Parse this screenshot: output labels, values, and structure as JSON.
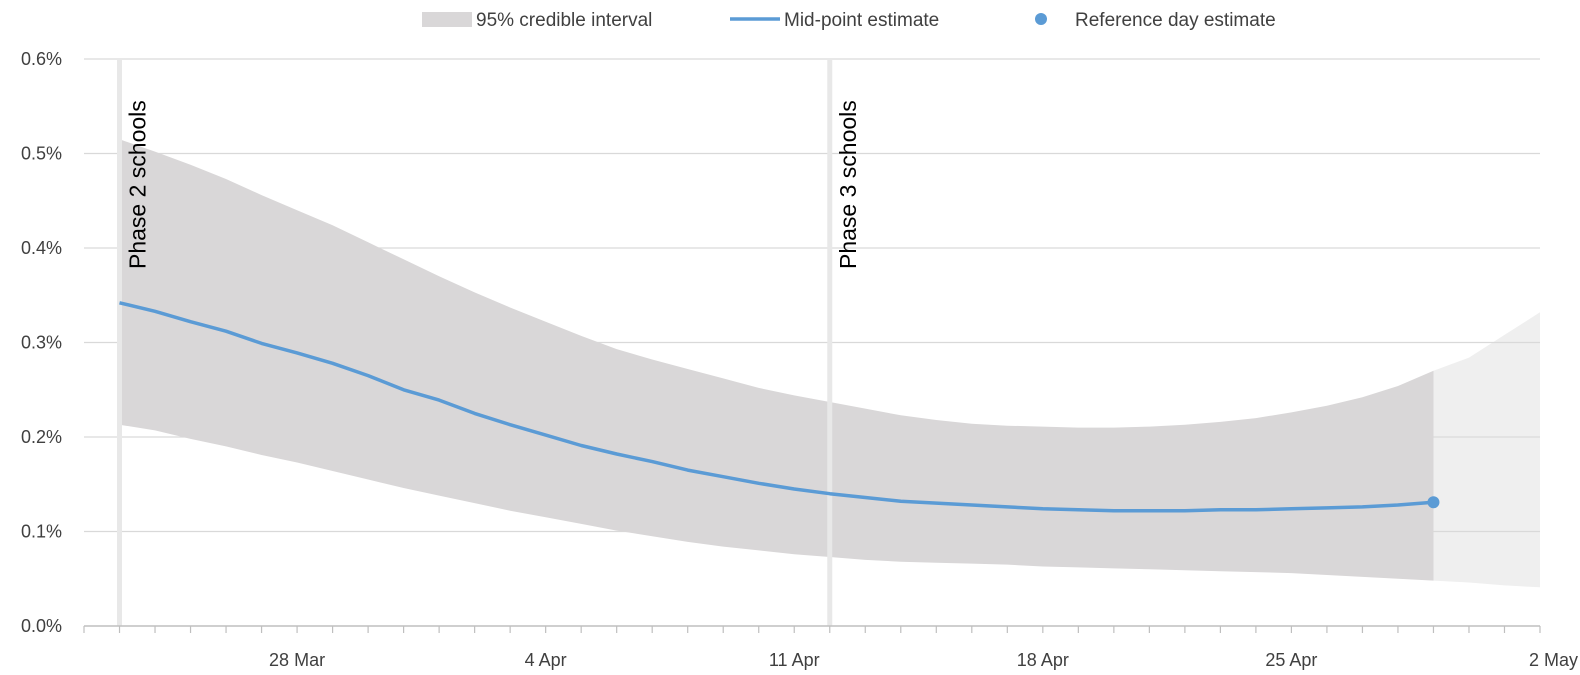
{
  "chart_data": {
    "type": "line",
    "x_axis": {
      "type": "date",
      "min": "2020-03-22",
      "max": "2020-05-02",
      "tick_labels": [
        {
          "date": "2020-03-28",
          "label": "28 Mar"
        },
        {
          "date": "2020-04-04",
          "label": "4 Apr"
        },
        {
          "date": "2020-04-11",
          "label": "11 Apr"
        },
        {
          "date": "2020-04-18",
          "label": "18 Apr"
        },
        {
          "date": "2020-04-25",
          "label": "25 Apr"
        },
        {
          "date": "2020-05-02",
          "label": "2 May"
        }
      ]
    },
    "y_axis": {
      "min": 0,
      "max": 0.6,
      "unit": "%",
      "tick_labels": [
        {
          "value": 0.0,
          "label": "0.0%"
        },
        {
          "value": 0.1,
          "label": "0.1%"
        },
        {
          "value": 0.2,
          "label": "0.2%"
        },
        {
          "value": 0.3,
          "label": "0.3%"
        },
        {
          "value": 0.4,
          "label": "0.4%"
        },
        {
          "value": 0.5,
          "label": "0.5%"
        },
        {
          "value": 0.6,
          "label": "0.6%"
        }
      ]
    },
    "grid": "horizontal",
    "legend": {
      "position": "top",
      "items": [
        {
          "label": "95% credible interval",
          "kind": "band"
        },
        {
          "label": "Mid-point estimate",
          "kind": "line"
        },
        {
          "label": "Reference day estimate",
          "kind": "point"
        }
      ]
    },
    "colors": {
      "band": "#d9d7d8",
      "band_projection": "#efefef",
      "line": "#5b9bd5",
      "grid": "#d9d9d9",
      "marker_line": "#e8e8e8",
      "axis": "#bfbfbf"
    },
    "annotations": [
      {
        "date": "2020-03-23",
        "label": "Phase 2 schools"
      },
      {
        "date": "2020-04-12",
        "label": "Phase 3 schools"
      }
    ],
    "series": [
      {
        "name": "Mid-point estimate",
        "points": [
          [
            "2020-03-23",
            0.342
          ],
          [
            "2020-03-24",
            0.333
          ],
          [
            "2020-03-25",
            0.322
          ],
          [
            "2020-03-26",
            0.312
          ],
          [
            "2020-03-27",
            0.299
          ],
          [
            "2020-03-28",
            0.289
          ],
          [
            "2020-03-29",
            0.278
          ],
          [
            "2020-03-30",
            0.265
          ],
          [
            "2020-03-31",
            0.25
          ],
          [
            "2020-04-01",
            0.239
          ],
          [
            "2020-04-02",
            0.225
          ],
          [
            "2020-04-03",
            0.213
          ],
          [
            "2020-04-04",
            0.202
          ],
          [
            "2020-04-05",
            0.191
          ],
          [
            "2020-04-06",
            0.182
          ],
          [
            "2020-04-07",
            0.174
          ],
          [
            "2020-04-08",
            0.165
          ],
          [
            "2020-04-09",
            0.158
          ],
          [
            "2020-04-10",
            0.151
          ],
          [
            "2020-04-11",
            0.145
          ],
          [
            "2020-04-12",
            0.14
          ],
          [
            "2020-04-13",
            0.136
          ],
          [
            "2020-04-14",
            0.132
          ],
          [
            "2020-04-15",
            0.13
          ],
          [
            "2020-04-16",
            0.128
          ],
          [
            "2020-04-17",
            0.126
          ],
          [
            "2020-04-18",
            0.124
          ],
          [
            "2020-04-19",
            0.123
          ],
          [
            "2020-04-20",
            0.122
          ],
          [
            "2020-04-21",
            0.122
          ],
          [
            "2020-04-22",
            0.122
          ],
          [
            "2020-04-23",
            0.123
          ],
          [
            "2020-04-24",
            0.123
          ],
          [
            "2020-04-25",
            0.124
          ],
          [
            "2020-04-26",
            0.125
          ],
          [
            "2020-04-27",
            0.126
          ],
          [
            "2020-04-28",
            0.128
          ],
          [
            "2020-04-29",
            0.131
          ]
        ]
      },
      {
        "name": "95% credible interval",
        "upper": [
          [
            "2020-03-23",
            0.515
          ],
          [
            "2020-03-24",
            0.502
          ],
          [
            "2020-03-25",
            0.488
          ],
          [
            "2020-03-26",
            0.473
          ],
          [
            "2020-03-27",
            0.456
          ],
          [
            "2020-03-28",
            0.44
          ],
          [
            "2020-03-29",
            0.424
          ],
          [
            "2020-03-30",
            0.406
          ],
          [
            "2020-03-31",
            0.388
          ],
          [
            "2020-04-01",
            0.37
          ],
          [
            "2020-04-02",
            0.353
          ],
          [
            "2020-04-03",
            0.337
          ],
          [
            "2020-04-04",
            0.322
          ],
          [
            "2020-04-05",
            0.307
          ],
          [
            "2020-04-06",
            0.293
          ],
          [
            "2020-04-07",
            0.282
          ],
          [
            "2020-04-08",
            0.272
          ],
          [
            "2020-04-09",
            0.262
          ],
          [
            "2020-04-10",
            0.252
          ],
          [
            "2020-04-11",
            0.244
          ],
          [
            "2020-04-12",
            0.237
          ],
          [
            "2020-04-13",
            0.23
          ],
          [
            "2020-04-14",
            0.223
          ],
          [
            "2020-04-15",
            0.218
          ],
          [
            "2020-04-16",
            0.214
          ],
          [
            "2020-04-17",
            0.212
          ],
          [
            "2020-04-18",
            0.211
          ],
          [
            "2020-04-19",
            0.21
          ],
          [
            "2020-04-20",
            0.21
          ],
          [
            "2020-04-21",
            0.211
          ],
          [
            "2020-04-22",
            0.213
          ],
          [
            "2020-04-23",
            0.216
          ],
          [
            "2020-04-24",
            0.22
          ],
          [
            "2020-04-25",
            0.226
          ],
          [
            "2020-04-26",
            0.233
          ],
          [
            "2020-04-27",
            0.242
          ],
          [
            "2020-04-28",
            0.254
          ],
          [
            "2020-04-29",
            0.27
          ]
        ],
        "lower": [
          [
            "2020-03-23",
            0.213
          ],
          [
            "2020-03-24",
            0.207
          ],
          [
            "2020-03-25",
            0.198
          ],
          [
            "2020-03-26",
            0.19
          ],
          [
            "2020-03-27",
            0.181
          ],
          [
            "2020-03-28",
            0.173
          ],
          [
            "2020-03-29",
            0.164
          ],
          [
            "2020-03-30",
            0.155
          ],
          [
            "2020-03-31",
            0.146
          ],
          [
            "2020-04-01",
            0.138
          ],
          [
            "2020-04-02",
            0.13
          ],
          [
            "2020-04-03",
            0.122
          ],
          [
            "2020-04-04",
            0.115
          ],
          [
            "2020-04-05",
            0.108
          ],
          [
            "2020-04-06",
            0.101
          ],
          [
            "2020-04-07",
            0.095
          ],
          [
            "2020-04-08",
            0.089
          ],
          [
            "2020-04-09",
            0.084
          ],
          [
            "2020-04-10",
            0.08
          ],
          [
            "2020-04-11",
            0.076
          ],
          [
            "2020-04-12",
            0.073
          ],
          [
            "2020-04-13",
            0.07
          ],
          [
            "2020-04-14",
            0.068
          ],
          [
            "2020-04-15",
            0.067
          ],
          [
            "2020-04-16",
            0.066
          ],
          [
            "2020-04-17",
            0.065
          ],
          [
            "2020-04-18",
            0.063
          ],
          [
            "2020-04-19",
            0.062
          ],
          [
            "2020-04-20",
            0.061
          ],
          [
            "2020-04-21",
            0.06
          ],
          [
            "2020-04-22",
            0.059
          ],
          [
            "2020-04-23",
            0.058
          ],
          [
            "2020-04-24",
            0.057
          ],
          [
            "2020-04-25",
            0.056
          ],
          [
            "2020-04-26",
            0.054
          ],
          [
            "2020-04-27",
            0.052
          ],
          [
            "2020-04-28",
            0.05
          ],
          [
            "2020-04-29",
            0.048
          ]
        ],
        "projection_upper": [
          [
            "2020-04-29",
            0.27
          ],
          [
            "2020-04-30",
            0.284
          ],
          [
            "2020-05-01",
            0.308
          ],
          [
            "2020-05-02",
            0.332
          ]
        ],
        "projection_lower": [
          [
            "2020-04-29",
            0.048
          ],
          [
            "2020-04-30",
            0.046
          ],
          [
            "2020-05-01",
            0.043
          ],
          [
            "2020-05-02",
            0.041
          ]
        ]
      },
      {
        "name": "Reference day estimate",
        "points": [
          [
            "2020-04-29",
            0.131
          ]
        ]
      }
    ]
  }
}
